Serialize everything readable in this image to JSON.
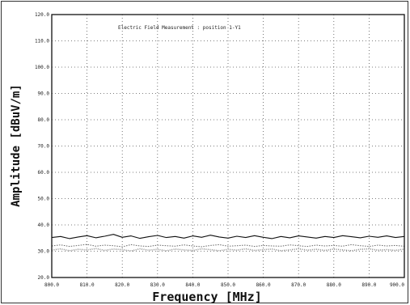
{
  "chart_data": {
    "type": "line",
    "title": "Electric Field Measurement : position 1-Y1",
    "xlabel": "Frequency [MHz]",
    "ylabel": "Amplitude [dBuV/m]",
    "xlim": [
      800,
      900
    ],
    "ylim": [
      20,
      120
    ],
    "x_ticks": [
      800,
      810,
      820,
      830,
      840,
      850,
      860,
      870,
      880,
      890,
      900
    ],
    "x_tick_labels": [
      "800.0",
      "810.0",
      "820.0",
      "830.0",
      "840.0",
      "850.0",
      "860.0",
      "870.0",
      "880.0",
      "890.0",
      "900.0"
    ],
    "y_ticks": [
      20,
      30,
      40,
      50,
      60,
      70,
      80,
      90,
      100,
      110,
      120
    ],
    "y_tick_labels": [
      "20.0",
      "30.0",
      "40.0",
      "50.0",
      "60.0",
      "70.0",
      "80.0",
      "90.0",
      "100.0",
      "110.0",
      "120.0"
    ],
    "grid": true,
    "series": [
      {
        "color": "#111111",
        "x": [
          800,
          802.5,
          805,
          807.5,
          810,
          812.5,
          815,
          817.5,
          820,
          822.5,
          825,
          827.5,
          830,
          832.5,
          835,
          837.5,
          840,
          842.5,
          845,
          847.5,
          850,
          852.5,
          855,
          857.5,
          860,
          862.5,
          865,
          867.5,
          870,
          872.5,
          875,
          877.5,
          880,
          882.5,
          885,
          887.5,
          890,
          892.5,
          895,
          897.5,
          900
        ],
        "y": [
          35.2,
          35.6,
          34.8,
          35.4,
          35.9,
          35.1,
          35.7,
          36.4,
          35.3,
          35.8,
          34.9,
          35.5,
          36.0,
          35.2,
          35.6,
          35.0,
          35.8,
          35.3,
          36.1,
          35.4,
          35.0,
          35.7,
          35.2,
          35.9,
          35.3,
          34.8,
          35.6,
          35.1,
          35.8,
          35.4,
          35.0,
          35.6,
          35.2,
          35.9,
          35.5,
          35.1,
          35.7,
          35.3,
          35.8,
          35.2,
          35.6
        ]
      },
      {
        "color": "#666666",
        "x": [
          800,
          802.5,
          805,
          807.5,
          810,
          812.5,
          815,
          817.5,
          820,
          822.5,
          825,
          827.5,
          830,
          832.5,
          835,
          837.5,
          840,
          842.5,
          845,
          847.5,
          850,
          852.5,
          855,
          857.5,
          860,
          862.5,
          865,
          867.5,
          870,
          872.5,
          875,
          877.5,
          880,
          882.5,
          885,
          887.5,
          890,
          892.5,
          895,
          897.5,
          900
        ],
        "y": [
          32.0,
          32.4,
          31.8,
          32.2,
          32.6,
          31.9,
          32.3,
          32.1,
          31.7,
          32.5,
          32.0,
          31.8,
          32.3,
          32.1,
          31.9,
          32.4,
          32.0,
          31.7,
          32.2,
          32.5,
          31.9,
          32.1,
          32.3,
          31.8,
          32.2,
          32.0,
          31.9,
          32.4,
          32.1,
          31.8,
          32.3,
          32.0,
          32.2,
          31.9,
          32.5,
          32.1,
          31.8,
          32.3,
          32.0,
          32.2,
          31.9
        ]
      },
      {
        "color": "#888888",
        "x": [
          800,
          802.5,
          805,
          807.5,
          810,
          812.5,
          815,
          817.5,
          820,
          822.5,
          825,
          827.5,
          830,
          832.5,
          835,
          837.5,
          840,
          842.5,
          845,
          847.5,
          850,
          852.5,
          855,
          857.5,
          860,
          862.5,
          865,
          867.5,
          870,
          872.5,
          875,
          877.5,
          880,
          882.5,
          885,
          887.5,
          890,
          892.5,
          895,
          897.5,
          900
        ],
        "y": [
          30.4,
          30.9,
          30.2,
          30.7,
          30.5,
          31.0,
          30.3,
          30.8,
          30.6,
          30.1,
          30.9,
          30.4,
          30.7,
          30.2,
          30.8,
          30.5,
          30.3,
          30.9,
          30.6,
          30.2,
          30.7,
          30.4,
          30.9,
          30.3,
          30.6,
          30.8,
          30.2,
          30.5,
          30.9,
          30.4,
          30.7,
          30.3,
          30.8,
          30.5,
          30.2,
          30.7,
          30.9,
          30.4,
          30.6,
          30.3,
          30.8
        ]
      }
    ]
  }
}
